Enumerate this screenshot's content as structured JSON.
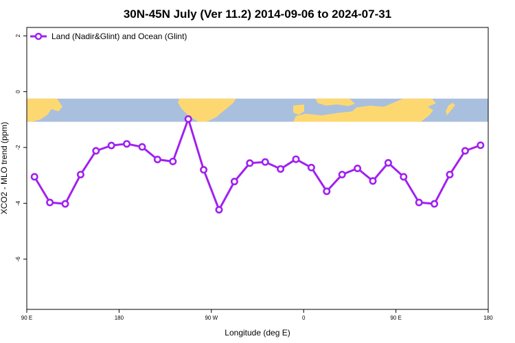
{
  "chart_data": {
    "type": "line",
    "title": "30N-45N July (Ver 11.2)   2014-09-06 to 2024-07-31",
    "xlabel": "Longitude (deg E)",
    "ylabel": "XCO2 - MLO trend (ppm)",
    "xlim": [
      0,
      30
    ],
    "ylim": [
      -7.8,
      2.3
    ],
    "x_ticks": [
      {
        "pos": 0,
        "label": "90 E"
      },
      {
        "pos": 6,
        "label": "180"
      },
      {
        "pos": 12,
        "label": "90 W"
      },
      {
        "pos": 18,
        "label": "0"
      },
      {
        "pos": 24,
        "label": "90 E"
      },
      {
        "pos": 30,
        "label": "180"
      }
    ],
    "y_ticks": [
      2,
      0,
      -2,
      -4,
      -6
    ],
    "legend_position": "top-left",
    "colors": {
      "series": "#a020f0",
      "ocean": "#a9bfde",
      "land": "#fdd871"
    },
    "map_band": {
      "y_top": -0.25,
      "y_bottom": -1.08
    },
    "series": [
      {
        "name": "Land (Nadir&Glint) and Ocean (Glint)",
        "x": [
          0.5,
          1.5,
          2.5,
          3.5,
          4.5,
          5.5,
          6.5,
          7.5,
          8.5,
          9.5,
          10.5,
          11.5,
          12.5,
          13.5,
          14.5,
          15.5,
          16.5,
          17.5,
          18.5,
          19.5,
          20.5,
          21.5,
          22.5,
          23.5,
          24.5,
          25.5,
          26.5,
          27.5,
          28.5,
          29.5
        ],
        "values": [
          -3.05,
          -3.97,
          -4.02,
          -2.97,
          -2.12,
          -1.93,
          -1.87,
          -1.98,
          -2.43,
          -2.5,
          -0.98,
          -2.8,
          -4.23,
          -3.22,
          -2.56,
          -2.52,
          -2.77,
          -2.42,
          -2.72,
          -3.57,
          -2.97,
          -2.75,
          -3.2,
          -2.55,
          -3.05,
          -3.97,
          -4.02,
          -2.97,
          -2.12,
          -1.92
        ]
      }
    ]
  }
}
